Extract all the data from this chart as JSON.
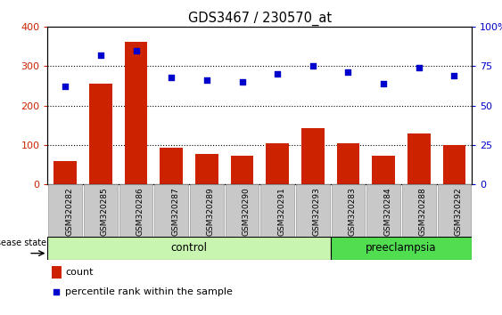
{
  "title": "GDS3467 / 230570_at",
  "samples": [
    "GSM320282",
    "GSM320285",
    "GSM320286",
    "GSM320287",
    "GSM320289",
    "GSM320290",
    "GSM320291",
    "GSM320293",
    "GSM320283",
    "GSM320284",
    "GSM320288",
    "GSM320292"
  ],
  "counts": [
    60,
    255,
    362,
    92,
    78,
    72,
    105,
    143,
    105,
    72,
    128,
    100
  ],
  "percentiles": [
    62,
    82,
    85,
    68,
    66,
    65,
    70,
    75,
    71,
    64,
    74,
    69
  ],
  "groups": [
    "control",
    "control",
    "control",
    "control",
    "control",
    "control",
    "control",
    "control",
    "preeclampsia",
    "preeclampsia",
    "preeclampsia",
    "preeclampsia"
  ],
  "control_color": "#c8f5b0",
  "preeclampsia_color": "#50dd50",
  "bar_color": "#cc2200",
  "dot_color": "#0000cc",
  "ylim_left": [
    0,
    400
  ],
  "ylim_right": [
    0,
    100
  ],
  "yticks_left": [
    0,
    100,
    200,
    300,
    400
  ],
  "yticks_right": [
    0,
    25,
    50,
    75,
    100
  ],
  "tick_label_color_left": "#cc2200",
  "tick_label_color_right": "#0000cc",
  "xtick_bg_color": "#c8c8c8",
  "xtick_border_color": "#999999"
}
